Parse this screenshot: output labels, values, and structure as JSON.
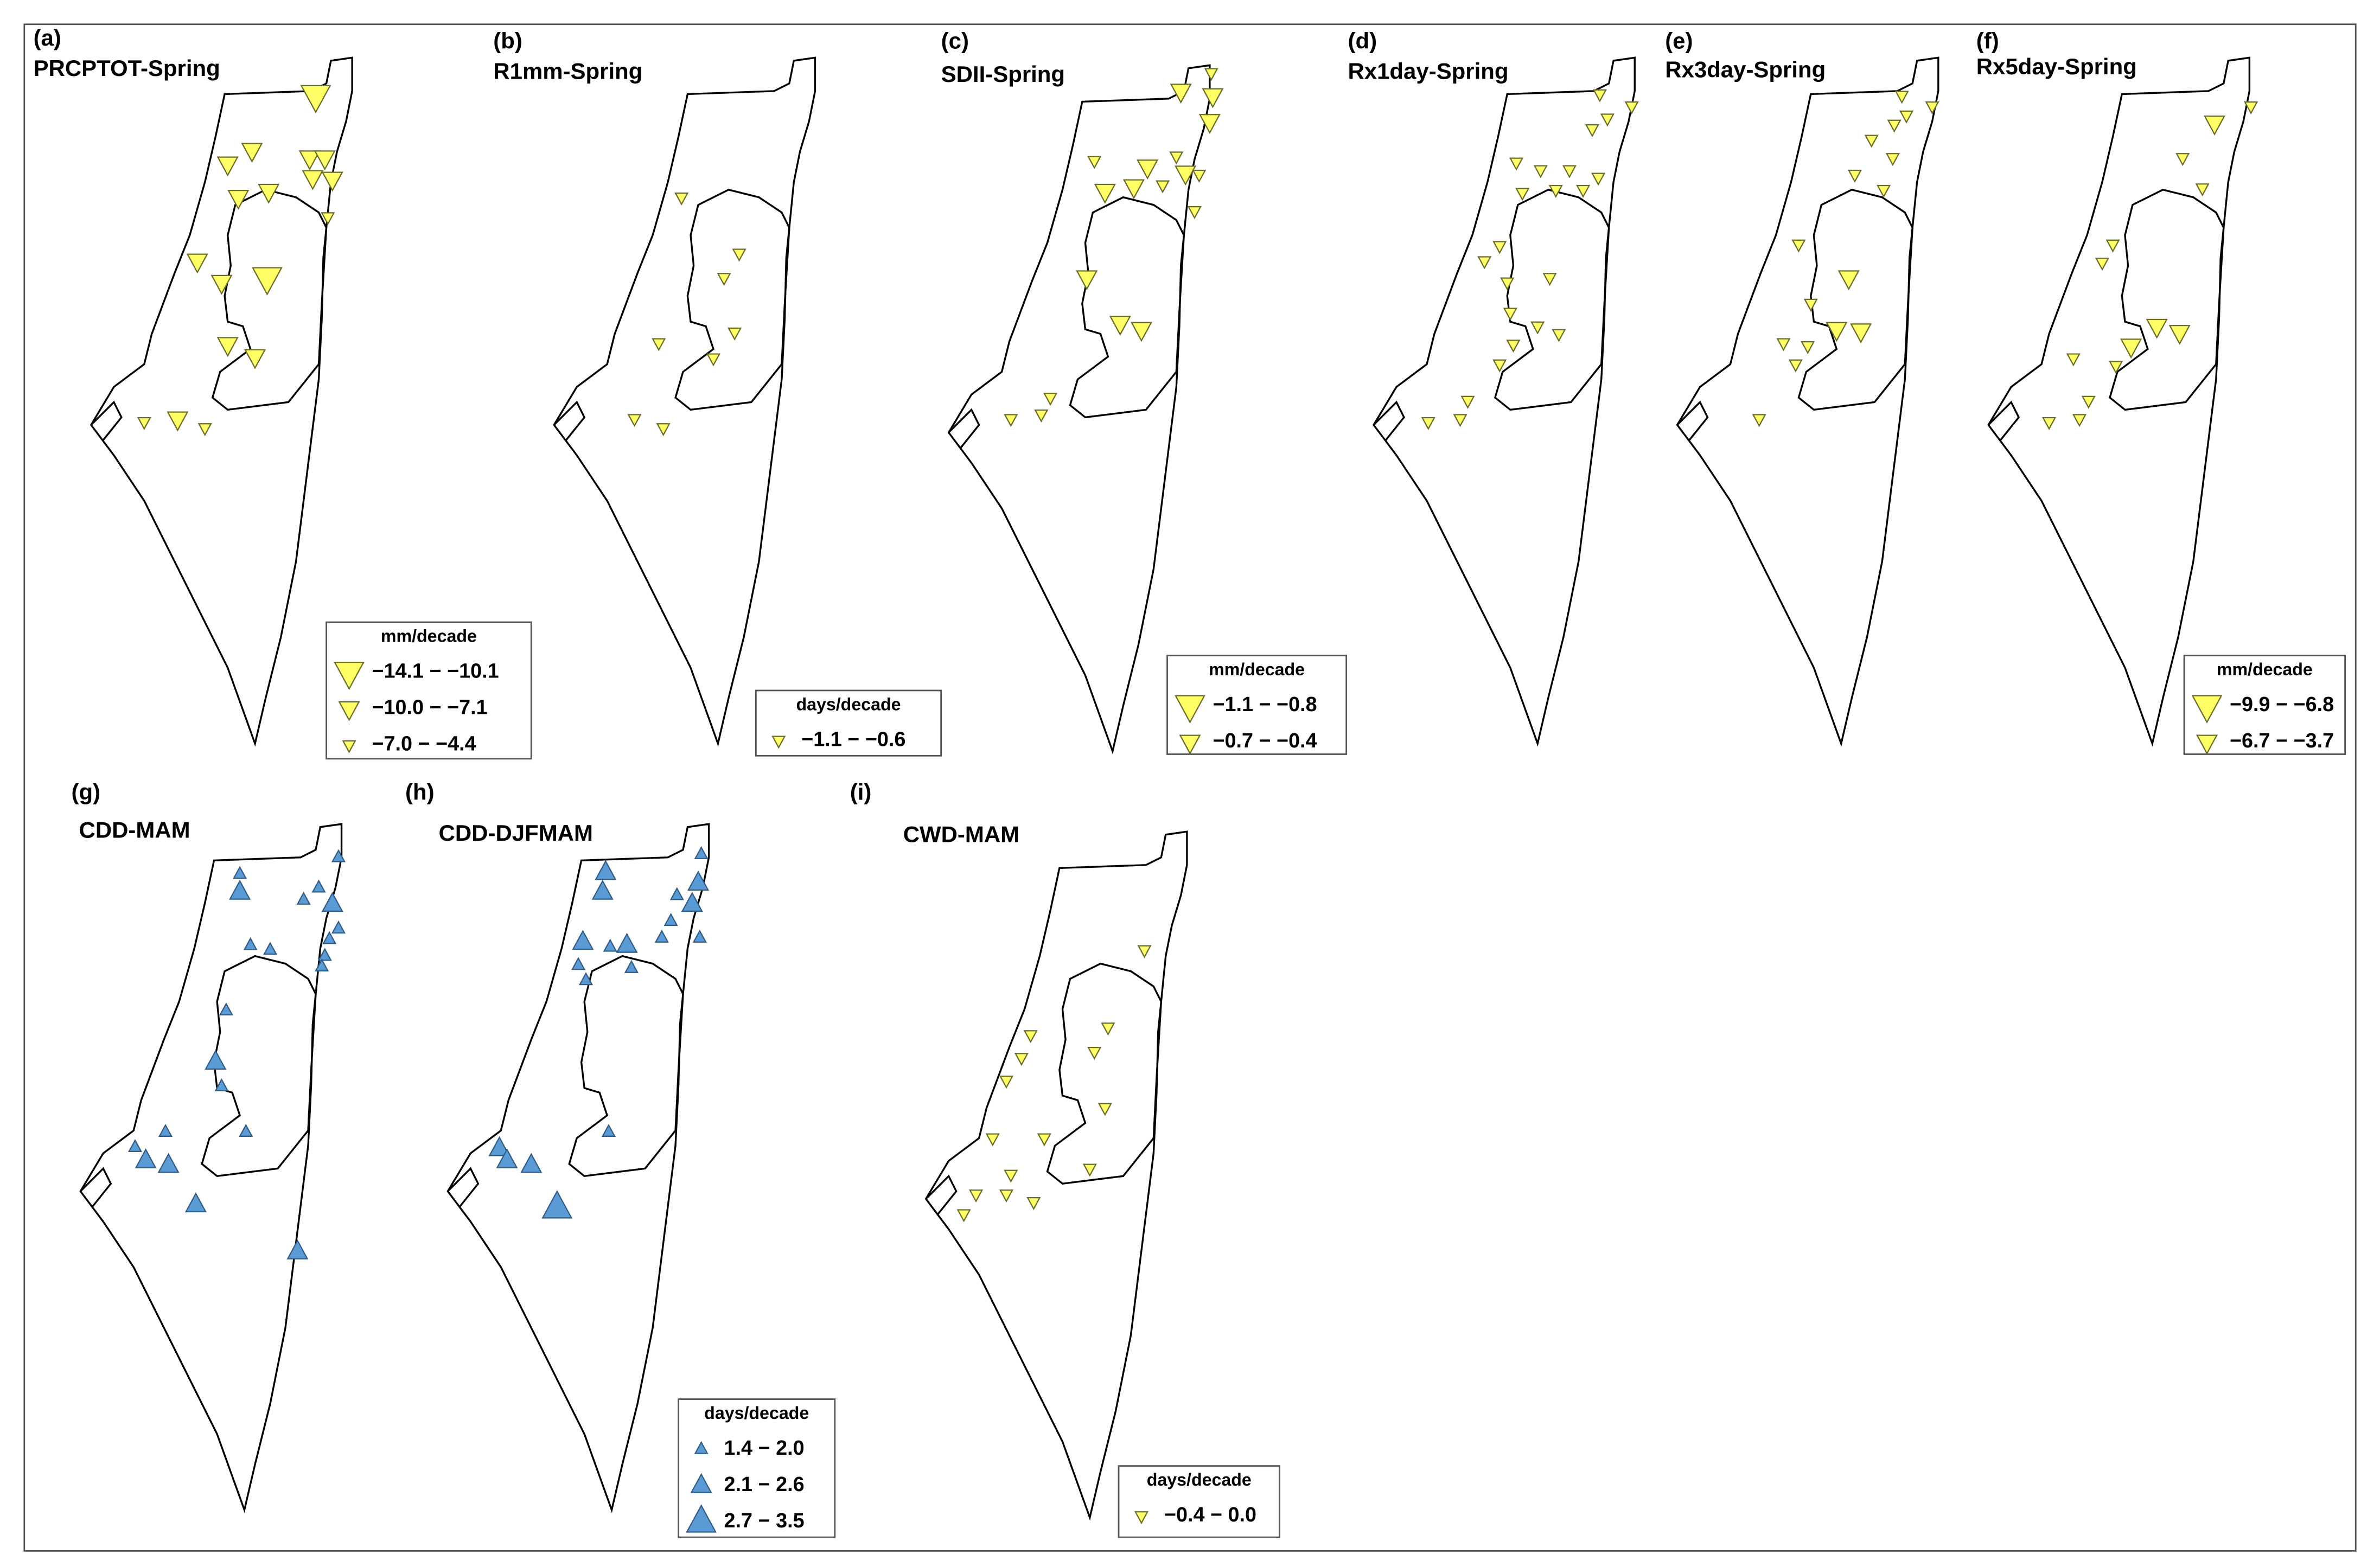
{
  "panels": [
    {
      "label": "(a)",
      "title": "PRCPTOT-Spring",
      "legend": {
        "title": "mm/decade",
        "entries": [
          "−14.1 − −10.1",
          "−10.0 − −7.1",
          "−7.0 − −4.4"
        ]
      }
    },
    {
      "label": "(b)",
      "title": "R1mm-Spring",
      "legend": {
        "title": "days/decade",
        "entries": [
          "−1.1 − −0.6"
        ]
      }
    },
    {
      "label": "(c)",
      "title": "SDII-Spring",
      "legend": {
        "title": "mm/decade",
        "entries": [
          "−1.1 − −0.8",
          "−0.7 − −0.4"
        ]
      }
    },
    {
      "label": "(d)",
      "title": "Rx1day-Spring"
    },
    {
      "label": "(e)",
      "title": "Rx3day-Spring"
    },
    {
      "label": "(f)",
      "title": "Rx5day-Spring",
      "legend": {
        "title": "mm/decade",
        "entries": [
          "−9.9 − −6.8",
          "−6.7 − −3.7"
        ]
      }
    },
    {
      "label": "(g)",
      "title": "CDD-MAM"
    },
    {
      "label": "(h)",
      "title": "CDD-DJFMAM",
      "legend": {
        "title": "days/decade",
        "entries": [
          "1.4 − 2.0",
          "2.1 − 2.6",
          "2.7 − 3.5"
        ]
      }
    },
    {
      "label": "(i)",
      "title": "CWD-MAM",
      "legend": {
        "title": "days/decade",
        "entries": [
          "−0.4 − 0.0"
        ]
      }
    }
  ]
}
